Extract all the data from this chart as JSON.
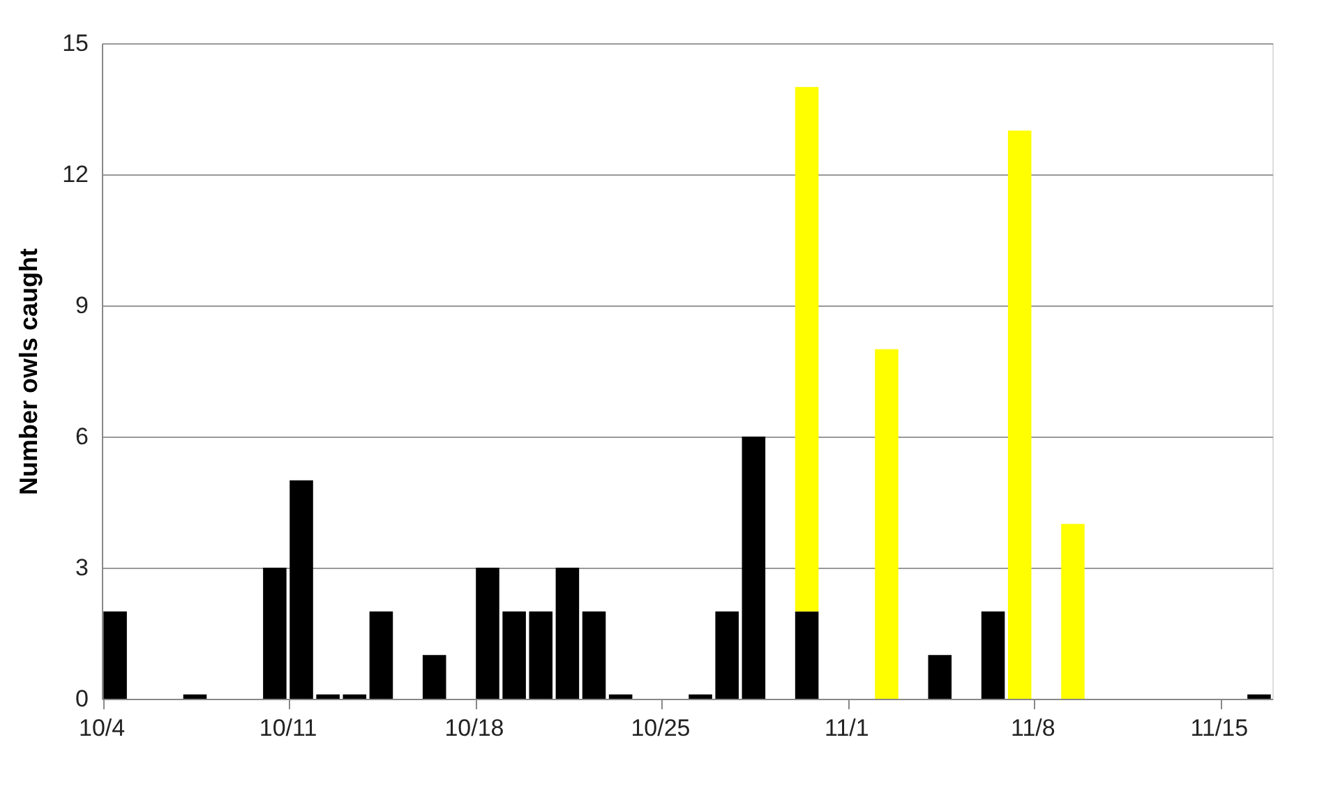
{
  "chart_data": {
    "type": "bar",
    "ylabel": "Number owls caught",
    "stacked": true,
    "categories": [
      "10/4",
      null,
      null,
      null,
      null,
      null,
      null,
      "10/11",
      null,
      null,
      null,
      null,
      null,
      null,
      "10/18",
      null,
      null,
      null,
      null,
      null,
      null,
      "10/25",
      null,
      null,
      null,
      null,
      null,
      null,
      "11/1",
      null,
      null,
      null,
      null,
      null,
      null,
      "11/8",
      null,
      null,
      null,
      null,
      null,
      null,
      "11/15",
      null
    ],
    "series": [
      {
        "color": "#000000",
        "values": [
          2,
          null,
          null,
          0.1,
          null,
          null,
          3,
          5,
          0.1,
          0.1,
          2,
          null,
          1,
          null,
          3,
          2,
          2,
          3,
          2,
          0.1,
          null,
          null,
          0.1,
          2,
          6,
          null,
          2,
          null,
          null,
          null,
          null,
          1,
          null,
          2,
          null,
          null,
          null,
          null,
          null,
          null,
          null,
          null,
          null,
          0.1
        ]
      },
      {
        "color": "#ffff00",
        "values": [
          null,
          null,
          null,
          null,
          null,
          null,
          null,
          null,
          null,
          null,
          null,
          null,
          null,
          null,
          null,
          null,
          null,
          null,
          null,
          null,
          null,
          null,
          null,
          null,
          null,
          null,
          12,
          null,
          null,
          8,
          null,
          null,
          null,
          null,
          13,
          null,
          4,
          null,
          null,
          null,
          null,
          null,
          null,
          null
        ]
      }
    ],
    "ylim": [
      0,
      15
    ],
    "yticks": [
      0,
      3,
      6,
      9,
      12,
      15
    ],
    "grid": "y"
  }
}
